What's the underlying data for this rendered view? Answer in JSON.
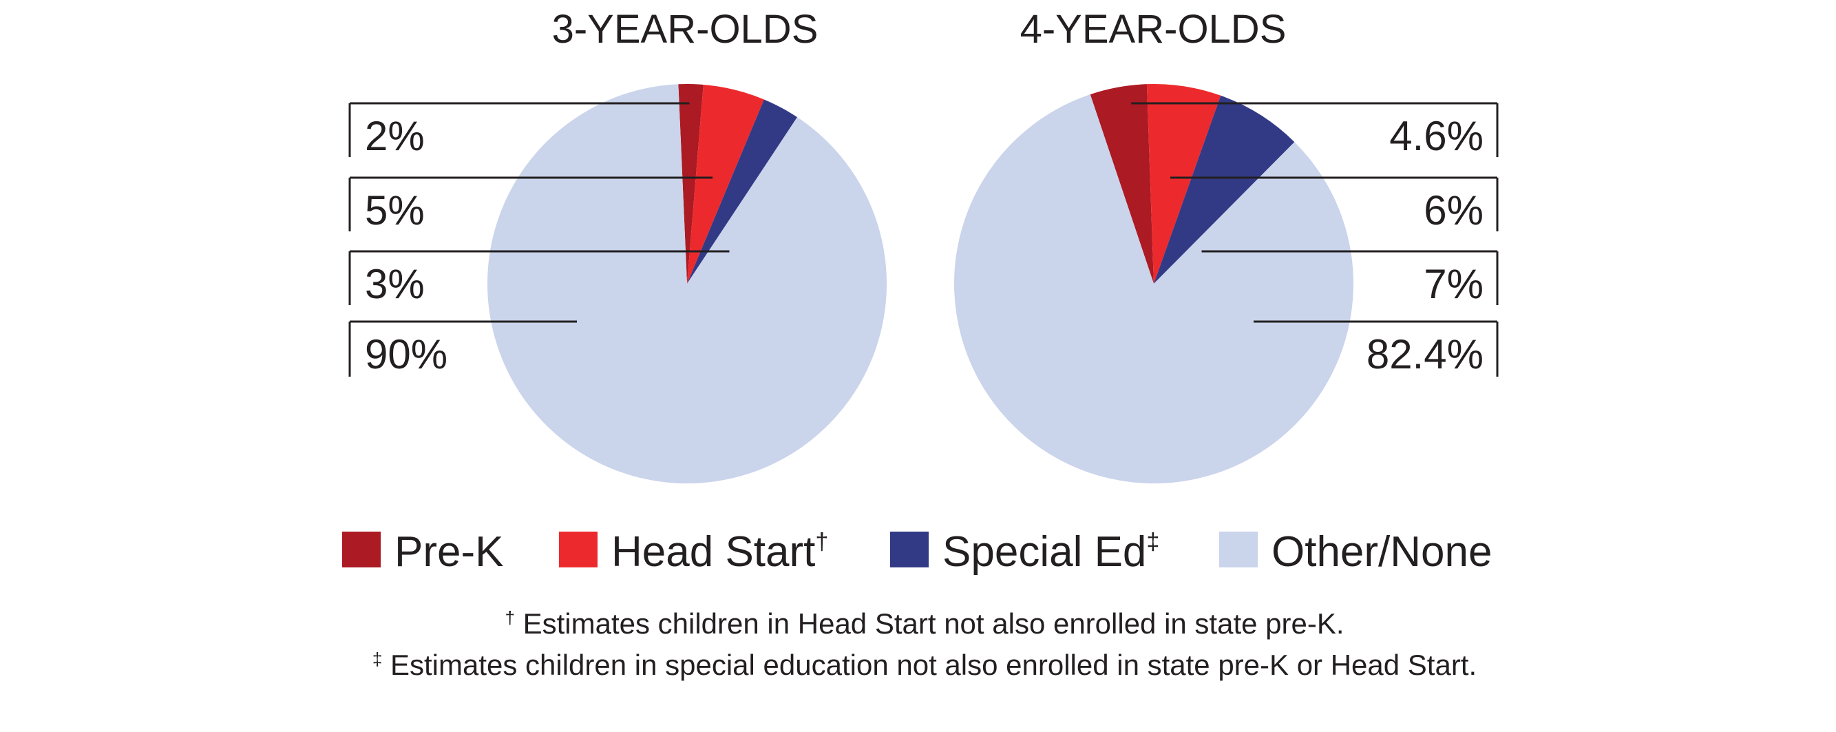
{
  "chart_data": [
    {
      "type": "pie",
      "title": "3-YEAR-OLDS",
      "categories": [
        "Pre-K",
        "Head Start†",
        "Special Ed‡",
        "Other/None"
      ],
      "values": [
        2,
        5,
        3,
        90
      ],
      "labels": [
        "2%",
        "5%",
        "3%",
        "90%"
      ]
    },
    {
      "type": "pie",
      "title": "4-YEAR-OLDS",
      "categories": [
        "Pre-K",
        "Head Start†",
        "Special Ed‡",
        "Other/None"
      ],
      "values": [
        4.6,
        6,
        7,
        82.4
      ],
      "labels": [
        "4.6%",
        "6%",
        "7%",
        "82.4%"
      ]
    }
  ],
  "legend": {
    "items": [
      {
        "label": "Pre-K",
        "mark": "",
        "color": "#ac1a23"
      },
      {
        "label": "Head Start",
        "mark": "†",
        "color": "#ec2a2d"
      },
      {
        "label": "Special Ed",
        "mark": "‡",
        "color": "#323a86"
      },
      {
        "label": "Other/None",
        "mark": "",
        "color": "#cad4eb"
      }
    ]
  },
  "footnotes": [
    {
      "mark": "†",
      "text": " Estimates children in Head Start not also enrolled in state pre-K."
    },
    {
      "mark": "‡",
      "text": " Estimates children in special education not also enrolled in state pre-K or Head Start."
    }
  ]
}
